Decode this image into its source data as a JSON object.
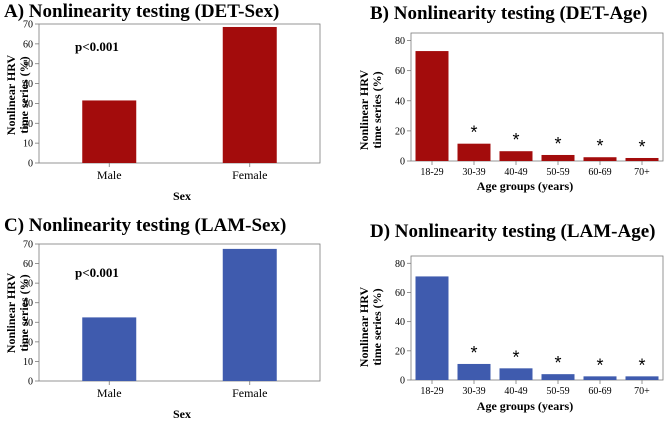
{
  "chart_data": [
    {
      "type": "bar",
      "title": "A) Nonlinearity testing (DET-Sex)",
      "categories": [
        "Male",
        "Female"
      ],
      "values": [
        31.5,
        68.5
      ],
      "xlabel": "Sex",
      "ylabel_lines": [
        "Nonlinear HRV",
        "time series (%)"
      ],
      "ylim": [
        0,
        70
      ],
      "yticks": [
        "0",
        "10",
        "20",
        "30",
        "40",
        "50",
        "60",
        "70"
      ],
      "annotation": "p<0.001",
      "stars": [
        "",
        ""
      ],
      "color": "#A30C0C"
    },
    {
      "type": "bar",
      "title": "B) Nonlinearity testing (DET-Age)",
      "categories": [
        "18-29",
        "30-39",
        "40-49",
        "50-59",
        "60-69",
        "70+"
      ],
      "values": [
        73,
        11.5,
        6.5,
        4,
        2.5,
        2
      ],
      "xlabel": "Age groups (years)",
      "ylabel_lines": [
        "Nonlinear HRV",
        "time series (%)"
      ],
      "ylim": [
        0,
        85
      ],
      "yticks": [
        "0",
        "20",
        "40",
        "60",
        "80"
      ],
      "annotation": "",
      "stars": [
        "",
        "*",
        "*",
        "*",
        "*",
        "*"
      ],
      "color": "#A30C0C"
    },
    {
      "type": "bar",
      "title": "C) Nonlinearity testing (LAM-Sex)",
      "categories": [
        "Male",
        "Female"
      ],
      "values": [
        32.5,
        67.5
      ],
      "xlabel": "Sex",
      "ylabel_lines": [
        "Nonlinear HRV",
        "time series (%)"
      ],
      "ylim": [
        0,
        70
      ],
      "yticks": [
        "0",
        "10",
        "20",
        "30",
        "40",
        "50",
        "60",
        "70"
      ],
      "annotation": "p<0.001",
      "stars": [
        "",
        ""
      ],
      "color": "#3F5BAE"
    },
    {
      "type": "bar",
      "title": "D) Nonlinearity testing (LAM-Age)",
      "categories": [
        "18-29",
        "30-39",
        "40-49",
        "50-59",
        "60-69",
        "70+"
      ],
      "values": [
        71,
        11,
        8,
        4,
        2.5,
        2.5
      ],
      "xlabel": "Age groups (years)",
      "ylabel_lines": [
        "Nonlinear HRV",
        "time series (%)"
      ],
      "ylim": [
        0,
        85
      ],
      "yticks": [
        "0",
        "20",
        "40",
        "60",
        "80"
      ],
      "annotation": "",
      "stars": [
        "",
        "*",
        "*",
        "*",
        "*",
        "*"
      ],
      "color": "#3F5BAE"
    }
  ]
}
